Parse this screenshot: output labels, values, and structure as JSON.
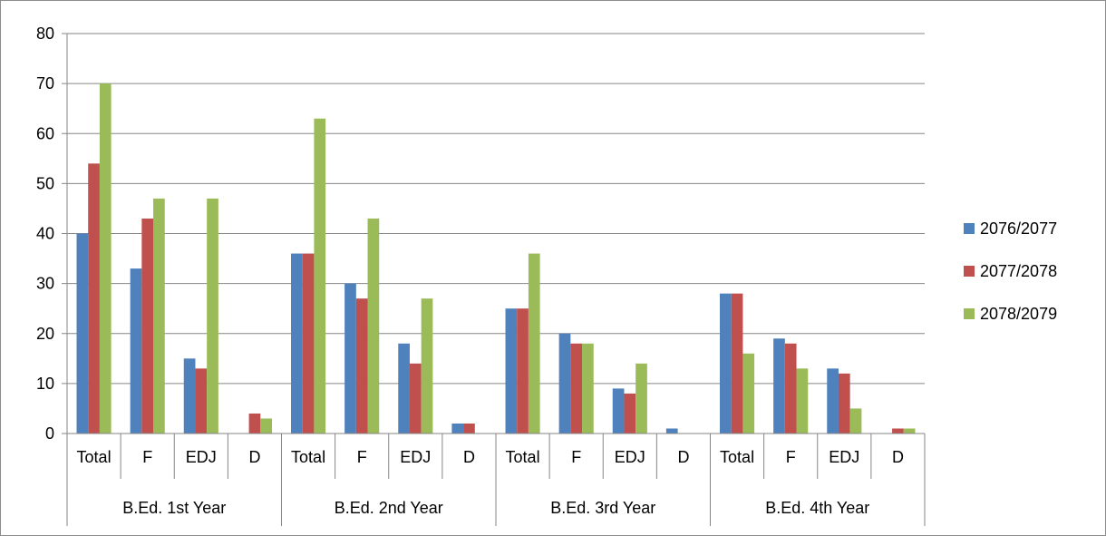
{
  "chart_data": {
    "type": "bar",
    "title": "",
    "xlabel": "",
    "ylabel": "",
    "ylim": [
      0,
      80
    ],
    "yticks": [
      0,
      10,
      20,
      30,
      40,
      50,
      60,
      70,
      80
    ],
    "grid": true,
    "legend_position": "right",
    "groups": [
      {
        "label": "B.Ed. 1st Year",
        "categories": [
          "Total",
          "F",
          "EDJ",
          "D"
        ]
      },
      {
        "label": "B.Ed. 2nd Year",
        "categories": [
          "Total",
          "F",
          "EDJ",
          "D"
        ]
      },
      {
        "label": "B.Ed. 3rd Year",
        "categories": [
          "Total",
          "F",
          "EDJ",
          "D"
        ]
      },
      {
        "label": "B.Ed. 4th Year",
        "categories": [
          "Total",
          "F",
          "EDJ",
          "D"
        ]
      }
    ],
    "series": [
      {
        "name": "2076/2077",
        "color": "#4f81bd",
        "values": [
          40,
          33,
          15,
          0,
          36,
          30,
          18,
          2,
          25,
          20,
          9,
          1,
          28,
          19,
          13,
          0
        ]
      },
      {
        "name": "2077/2078",
        "color": "#c0504d",
        "values": [
          54,
          43,
          13,
          4,
          36,
          27,
          14,
          2,
          25,
          18,
          8,
          0,
          28,
          18,
          12,
          1
        ]
      },
      {
        "name": "2078/2079",
        "color": "#9bbb59",
        "values": [
          70,
          47,
          47,
          3,
          63,
          43,
          27,
          0,
          36,
          18,
          14,
          0,
          16,
          13,
          5,
          1
        ]
      }
    ]
  }
}
